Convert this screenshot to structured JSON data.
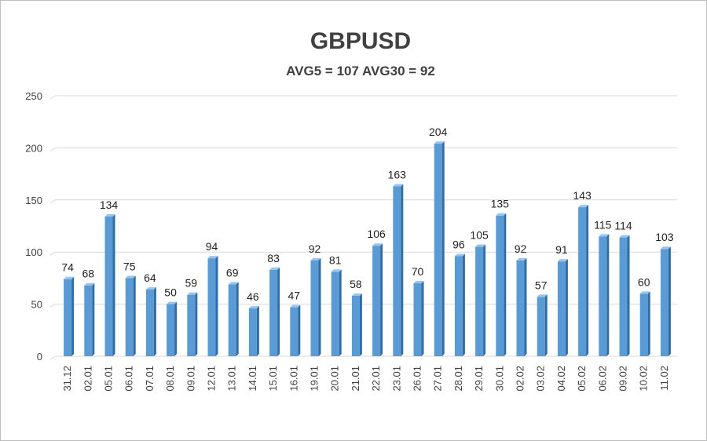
{
  "chart_data": {
    "type": "bar",
    "title": "GBPUSD",
    "subtitle": "AVG5 = 107 AVG30 = 92",
    "xlabel": "",
    "ylabel": "",
    "ylim": [
      0,
      250
    ],
    "yticks": [
      "0",
      "50",
      "100",
      "150",
      "200",
      "250"
    ],
    "grid": true,
    "legend": "none",
    "categories": [
      "31.12",
      "02.01",
      "05.01",
      "06.01",
      "07.01",
      "08.01",
      "09.01",
      "12.01",
      "13.01",
      "14.01",
      "15.01",
      "16.01",
      "19.01",
      "20.01",
      "21.01",
      "22.01",
      "23.01",
      "26.01",
      "27.01",
      "28.01",
      "29.01",
      "30.01",
      "02.02",
      "03.02",
      "04.02",
      "05.02",
      "06.02",
      "09.02",
      "10.02",
      "11.02"
    ],
    "values": [
      74,
      68,
      134,
      75,
      64,
      50,
      59,
      94,
      69,
      46,
      83,
      47,
      92,
      81,
      58,
      106,
      163,
      70,
      204,
      96,
      105,
      135,
      92,
      57,
      91,
      143,
      115,
      114,
      60,
      103
    ],
    "value_labels": [
      "74",
      "68",
      "134",
      "75",
      "64",
      "50",
      "59",
      "94",
      "69",
      "46",
      "83",
      "47",
      "92",
      "81",
      "58",
      "106",
      "163",
      "70",
      "204",
      "96",
      "105",
      "135",
      "92",
      "57",
      "91",
      "143",
      "115",
      "114",
      "60",
      "103"
    ],
    "colors": {
      "bar_front": "#5b9bd5",
      "bar_side": "#2f6da6",
      "bar_top": "#9dc3e6",
      "grid": "#d9d9d9",
      "text": "#404040"
    }
  }
}
